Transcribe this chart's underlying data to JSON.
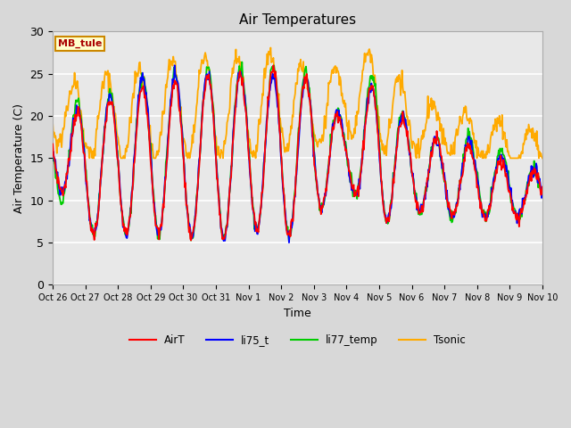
{
  "title": "Air Temperatures",
  "xlabel": "Time",
  "ylabel": "Air Temperature (C)",
  "ylim": [
    0,
    30
  ],
  "yticks": [
    0,
    5,
    10,
    15,
    20,
    25,
    30
  ],
  "colors": {
    "AirT": "#ff0000",
    "li75_t": "#0000ff",
    "li77_temp": "#00cc00",
    "Tsonic": "#ffaa00"
  },
  "legend_label": "MB_tule",
  "fig_facecolor": "#d8d8d8",
  "ax_facecolor": "#e8e8e8",
  "grid_color": "#ffffff",
  "xtick_labels": [
    "Oct 26",
    "Oct 27",
    "Oct 28",
    "Oct 29",
    "Oct 30",
    "Oct 31",
    "Nov 1",
    "Nov 2",
    "Nov 3",
    "Nov 4",
    "Nov 5",
    "Nov 6",
    "Nov 7",
    "Nov 8",
    "Nov 9",
    "Nov 10"
  ]
}
